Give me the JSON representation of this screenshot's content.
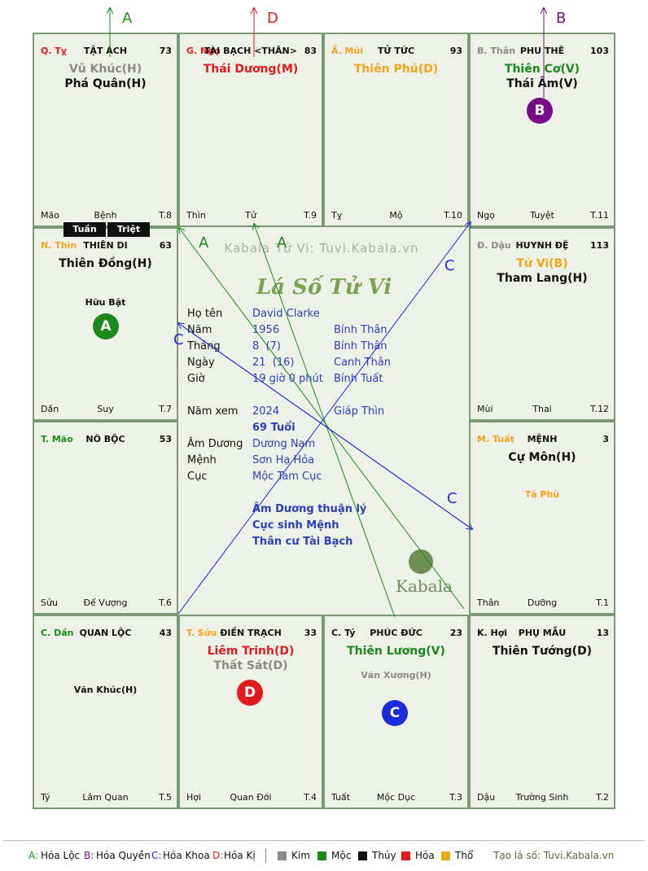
{
  "watermark": "Kabala Tử Vi: Tuvi.Kabala.vn",
  "chart_title": "Lá Số Tử Vi",
  "logo_text": "Kabala",
  "arrow_labels": {
    "top_a": "A",
    "top_d": "D",
    "top_b": "B",
    "mid_a1": "A",
    "mid_a2": "A",
    "mid_c1": "C",
    "mid_c2": "C",
    "mid_c3": "C"
  },
  "colors": {
    "green": "#1a8a1a",
    "red": "#e01b1b",
    "orange": "#f2a51a",
    "gray": "#8a8a8a",
    "blue": "#2d3fb8",
    "purple": "#7a0a8a"
  },
  "tuan_label": "Tuần",
  "triet_label": "Triệt",
  "cells": [
    {
      "code": "Q. Tỵ",
      "palace": "TẬT ÁCH",
      "num": "73",
      "stars": [
        {
          "name": "Vũ Khúc(H)",
          "color": "gray"
        },
        {
          "name": "Phá Quân(H)",
          "color": "black"
        }
      ],
      "branch": "Mão",
      "stage": "Bệnh",
      "t": "T.8"
    },
    {
      "code": "G. Ngọ",
      "palace": "TÀI BẠCH <THÂN>",
      "num": "83",
      "stars": [
        {
          "name": "Thái Dương(M)",
          "color": "red"
        }
      ],
      "branch": "Thìn",
      "stage": "Tử",
      "t": "T.9"
    },
    {
      "code": "Ấ. Mùi",
      "palace": "TỬ TỨC",
      "num": "93",
      "stars": [
        {
          "name": "Thiên Phủ(D)",
          "color": "orange"
        }
      ],
      "branch": "Tỵ",
      "stage": "Mộ",
      "t": "T.10"
    },
    {
      "code": "B. Thân",
      "palace": "PHU THÊ",
      "num": "103",
      "stars": [
        {
          "name": "Thiên Cơ(V)",
          "color": "green"
        },
        {
          "name": "Thái Âm(V)",
          "color": "black"
        }
      ],
      "branch": "Ngọ",
      "stage": "Tuyệt",
      "t": "T.11"
    },
    {
      "code": "N. Thìn",
      "palace": "THIÊN DI",
      "num": "63",
      "stars": [
        {
          "name": "Thiên Đồng(H)",
          "color": "black"
        }
      ],
      "minor": "Hữu Bật",
      "branch": "Dần",
      "stage": "Suy",
      "t": "T.7"
    },
    {
      "code": "Đ. Dậu",
      "palace": "HUYNH ĐỆ",
      "num": "113",
      "stars": [
        {
          "name": "Tử Vi(B)",
          "color": "orange"
        },
        {
          "name": "Tham Lang(H)",
          "color": "black"
        }
      ],
      "branch": "Mùi",
      "stage": "Thai",
      "t": "T.12"
    },
    {
      "code": "T. Mão",
      "palace": "NÔ BỘC",
      "num": "53",
      "stars": [],
      "branch": "Sửu",
      "stage": "Đế Vượng",
      "t": "T.6"
    },
    {
      "code": "M. Tuất",
      "palace": "MỆNH",
      "num": "3",
      "stars": [
        {
          "name": "Cự Môn(H)",
          "color": "black"
        }
      ],
      "minor": "Tả Phù",
      "branch": "Thân",
      "stage": "Dưỡng",
      "t": "T.1"
    },
    {
      "code": "C. Dần",
      "palace": "QUAN LỘC",
      "num": "43",
      "stars": [],
      "minor": "Văn Khúc(H)",
      "branch": "Tý",
      "stage": "Lâm Quan",
      "t": "T.5"
    },
    {
      "code": "T. Sửu",
      "palace": "ĐIỀN TRẠCH",
      "num": "33",
      "stars": [
        {
          "name": "Liêm Trinh(D)",
          "color": "red"
        },
        {
          "name": "Thất Sát(D)",
          "color": "gray"
        }
      ],
      "branch": "Hợi",
      "stage": "Quan Đới",
      "t": "T.4"
    },
    {
      "code": "C. Tý",
      "palace": "PHÚC ĐỨC",
      "num": "23",
      "stars": [
        {
          "name": "Thiên Lương(V)",
          "color": "green"
        }
      ],
      "minor": "Văn Xương(H)",
      "branch": "Tuất",
      "stage": "Mộc Dục",
      "t": "T.3"
    },
    {
      "code": "K. Hợi",
      "palace": "PHỤ MẪU",
      "num": "13",
      "stars": [
        {
          "name": "Thiên Tướng(D)",
          "color": "black"
        }
      ],
      "branch": "Dậu",
      "stage": "Trường Sinh",
      "t": "T.2"
    }
  ],
  "circles": {
    "b": "B",
    "a": "A",
    "d": "D",
    "c": "C"
  },
  "info": {
    "name_label": "Họ tên",
    "name": "David Clarke",
    "year_label": "Năm",
    "year": "1956",
    "year_cc": "Bính Thân",
    "month_label": "Tháng",
    "month": "8  (7)",
    "month_cc": "Bính Thân",
    "day_label": "Ngày",
    "day": "21  (16)",
    "day_cc": "Canh Thân",
    "hour_label": "Giờ",
    "hour": "19 giờ 0 phút",
    "hour_cc": "Bính Tuất",
    "view_label": "Năm xem",
    "view_year": "2024",
    "view_cc": "Giáp Thìn",
    "age": "69 Tuổi",
    "amduong_label": "Âm Dương",
    "amduong": "Dương Nam",
    "menh_label": "Mệnh",
    "menh": "Sơn Hạ Hỏa",
    "cuc_label": "Cục",
    "cuc": "Mộc Tam Cục",
    "note1": "Âm Dương thuận lý",
    "note2": "Cục sinh Mệnh",
    "note3": "Thân cư Tài Bạch"
  },
  "legend": {
    "a_key": "A:",
    "a_text": "Hóa Lộc",
    "b_key": "B:",
    "b_text": "Hóa Quyền",
    "c_key": "C:",
    "c_text": "Hóa Khoa",
    "d_key": "D:",
    "d_text": "Hóa Kị",
    "kim": "Kim",
    "moc": "Mộc",
    "thuy": "Thủy",
    "hoa": "Hỏa",
    "tho": "Thổ",
    "site": "Tạo lá số: Tuvi.Kabala.vn"
  }
}
